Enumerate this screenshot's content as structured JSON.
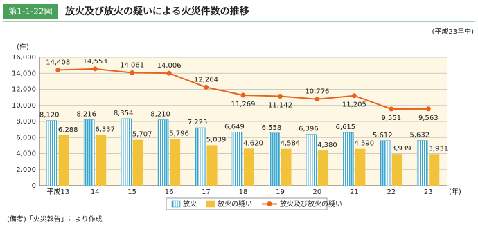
{
  "figure_label": "第1-1-22図",
  "chart_data": {
    "type": "bar-line",
    "title": "放火及び放火の疑いによる火災件数の推移",
    "subtitle": "(平成23年中)",
    "y_unit": "(件)",
    "x_unit": "(年)",
    "categories": [
      "平成13",
      "14",
      "15",
      "16",
      "17",
      "18",
      "19",
      "20",
      "21",
      "22",
      "23"
    ],
    "series": [
      {
        "name": "放火",
        "color": "#3aa7cf",
        "kind": "bar",
        "values": [
          8120,
          8216,
          8354,
          8210,
          7225,
          6649,
          6558,
          6396,
          6615,
          5612,
          5632
        ],
        "value_labels": [
          "8,120",
          "8,216",
          "8,354",
          "8,210",
          "7,225",
          "6,649",
          "6,558",
          "6,396",
          "6,615",
          "5,612",
          "5,632"
        ]
      },
      {
        "name": "放火の疑い",
        "color": "#f2c23a",
        "kind": "bar",
        "values": [
          6288,
          6337,
          5707,
          5796,
          5039,
          4620,
          4584,
          4380,
          4590,
          3939,
          3931
        ],
        "value_labels": [
          "6,288",
          "6,337",
          "5,707",
          "5,796",
          "5,039",
          "4,620",
          "4,584",
          "4,380",
          "4,590",
          "3,939",
          "3,931"
        ]
      },
      {
        "name": "放火及び放火の疑い",
        "color": "#e8641e",
        "kind": "line",
        "values": [
          14408,
          14553,
          14061,
          14006,
          12264,
          11269,
          11142,
          10776,
          11205,
          9551,
          9563
        ],
        "value_labels": [
          "14,408",
          "14,553",
          "14,061",
          "14,006",
          "12,264",
          "11,269",
          "11,142",
          "10,776",
          "11,205",
          "9,551",
          "9,563"
        ]
      }
    ],
    "ylim": [
      0,
      16000
    ],
    "yticks": [
      0,
      {
        "value": 2000,
        "label": "2,000"
      },
      {
        "value": 4000,
        "label": "4,000"
      },
      {
        "value": 6000,
        "label": "6,000"
      },
      {
        "value": 8000,
        "label": "8,000"
      },
      {
        "value": 10000,
        "label": "10,000"
      },
      {
        "value": 12000,
        "label": "12,000"
      },
      {
        "value": 14000,
        "label": "14,000"
      },
      {
        "value": 16000,
        "label": "16,000"
      }
    ],
    "grid": true,
    "legend": "bottom"
  },
  "source": "(備考)「火災報告」により作成"
}
